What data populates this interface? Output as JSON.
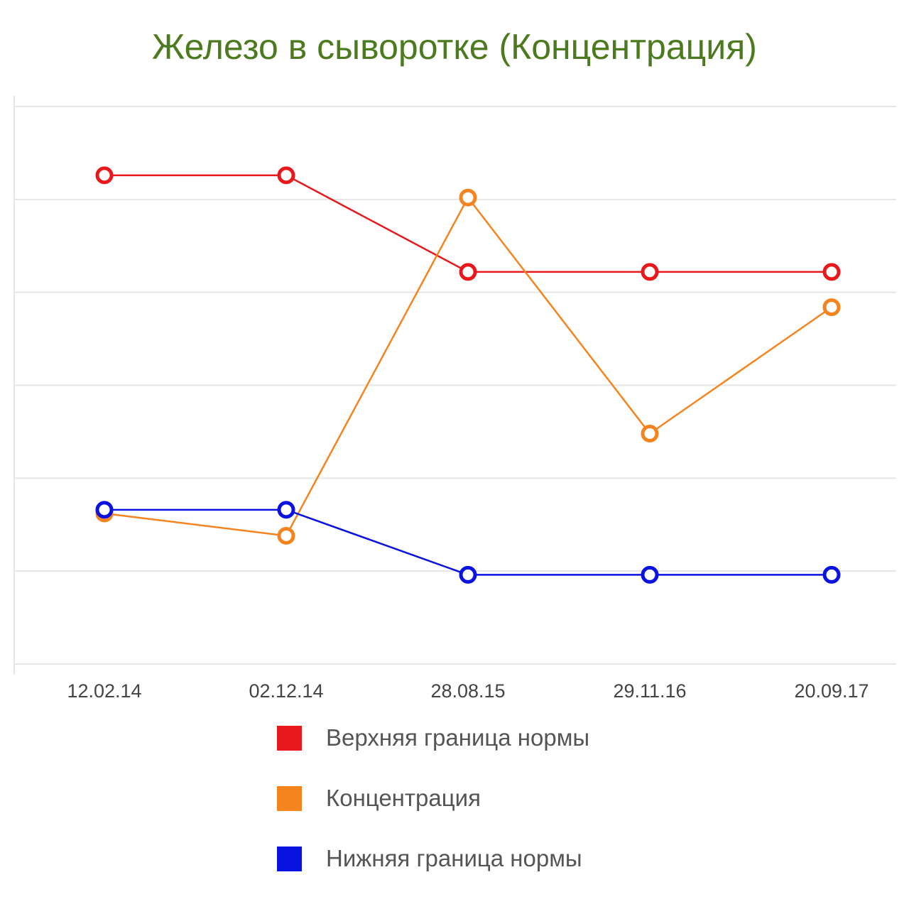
{
  "chart_data": {
    "type": "line",
    "title": "Железо в сыворотке (Концентрация)",
    "categories": [
      "12.02.14",
      "02.12.14",
      "28.08.15",
      "29.11.16",
      "20.09.17"
    ],
    "series": [
      {
        "name": "Верхняя граница нормы",
        "color": "#e8191d",
        "values": [
          26.3,
          26.3,
          21.1,
          21.1,
          21.1
        ]
      },
      {
        "name": "Концентрация",
        "color": "#f5841f",
        "values": [
          8.1,
          6.9,
          25.1,
          12.4,
          19.2
        ]
      },
      {
        "name": "Нижняя граница нормы",
        "color": "#0a12e0",
        "values": [
          8.3,
          8.3,
          4.8,
          4.8,
          4.8
        ]
      }
    ],
    "ylim": [
      0,
      30
    ],
    "grid": true,
    "legend": "bottom"
  }
}
